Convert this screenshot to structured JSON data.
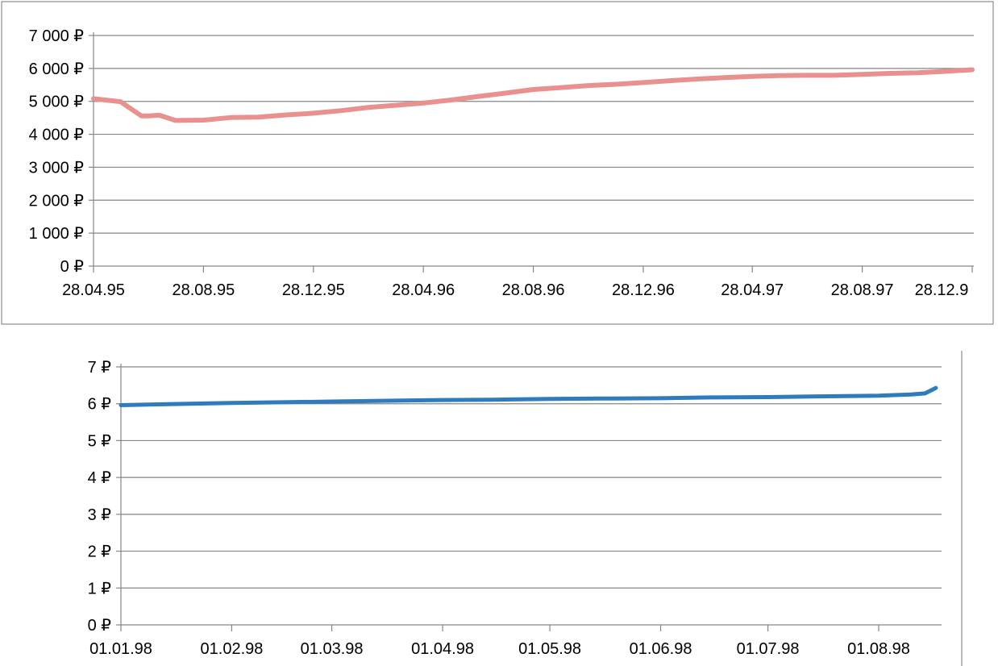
{
  "chart_data": [
    {
      "type": "line",
      "title": "",
      "xlabel": "",
      "ylabel": "",
      "ylim": [
        0,
        7000
      ],
      "y_ticks": [
        "0 ₽",
        "1 000 ₽",
        "2 000 ₽",
        "3 000 ₽",
        "4 000 ₽",
        "5 000 ₽",
        "6 000 ₽",
        "7 000 ₽"
      ],
      "x_ticks": [
        "28.04.95",
        "28.08.95",
        "28.12.95",
        "28.04.96",
        "28.08.96",
        "28.12.96",
        "28.04.97",
        "28.08.97",
        "28.12.9"
      ],
      "grid": true,
      "legend": "none",
      "line_color": "#e8918f",
      "series": [
        {
          "x": [
            "1995-04-28",
            "1995-05-28",
            "1995-06-20",
            "1995-06-28",
            "1995-07-10",
            "1995-07-28",
            "1995-08-28",
            "1995-09-28",
            "1995-10-28",
            "1995-11-28",
            "1995-12-28",
            "1996-01-28",
            "1996-02-28",
            "1996-03-28",
            "1996-04-28",
            "1996-05-28",
            "1996-06-28",
            "1996-07-28",
            "1996-08-28",
            "1996-09-28",
            "1996-10-28",
            "1996-11-28",
            "1996-12-28",
            "1997-01-28",
            "1997-02-28",
            "1997-03-28",
            "1997-04-28",
            "1997-05-28",
            "1997-06-28",
            "1997-07-28",
            "1997-08-28",
            "1997-09-28",
            "1997-10-28",
            "1997-11-28",
            "1997-12-28"
          ],
          "values": [
            5080,
            4990,
            4560,
            4560,
            4580,
            4420,
            4430,
            4510,
            4520,
            4590,
            4640,
            4720,
            4820,
            4880,
            4950,
            5040,
            5150,
            5250,
            5360,
            5420,
            5480,
            5520,
            5570,
            5630,
            5680,
            5720,
            5760,
            5780,
            5790,
            5790,
            5820,
            5850,
            5870,
            5910,
            5960
          ]
        }
      ]
    },
    {
      "type": "line",
      "title": "",
      "xlabel": "",
      "ylabel": "",
      "ylim": [
        0,
        7
      ],
      "y_ticks": [
        "0 ₽",
        "1 ₽",
        "2 ₽",
        "3 ₽",
        "4 ₽",
        "5 ₽",
        "6 ₽",
        "7 ₽"
      ],
      "x_ticks": [
        "01.01.98",
        "01.02.98",
        "01.03.98",
        "01.04.98",
        "01.05.98",
        "01.06.98",
        "01.07.98",
        "01.08.98"
      ],
      "grid": true,
      "legend": "none",
      "line_color": "#2e7bbd",
      "series": [
        {
          "x": [
            "1998-01-01",
            "1998-01-10",
            "1998-01-20",
            "1998-02-01",
            "1998-02-15",
            "1998-03-01",
            "1998-03-15",
            "1998-04-01",
            "1998-04-15",
            "1998-05-01",
            "1998-05-15",
            "1998-06-01",
            "1998-06-15",
            "1998-07-01",
            "1998-07-15",
            "1998-08-01",
            "1998-08-10",
            "1998-08-14",
            "1998-08-17"
          ],
          "values": [
            5.96,
            5.98,
            6.0,
            6.02,
            6.04,
            6.06,
            6.08,
            6.1,
            6.11,
            6.13,
            6.14,
            6.15,
            6.17,
            6.18,
            6.2,
            6.22,
            6.25,
            6.28,
            6.43
          ]
        }
      ]
    }
  ]
}
